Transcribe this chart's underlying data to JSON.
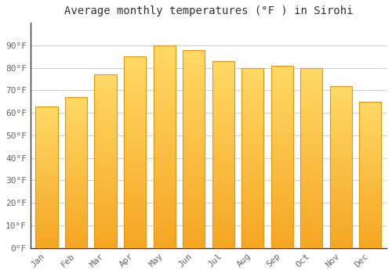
{
  "months": [
    "Jan",
    "Feb",
    "Mar",
    "Apr",
    "May",
    "Jun",
    "Jul",
    "Aug",
    "Sep",
    "Oct",
    "Nov",
    "Dec"
  ],
  "values": [
    63,
    67,
    77,
    85,
    90,
    88,
    83,
    80,
    81,
    80,
    72,
    65
  ],
  "bar_color_top": "#FFD966",
  "bar_color_bottom": "#F5A623",
  "bar_color_edge": "#E8950A",
  "title": "Average monthly temperatures (°F ) in Sirohi",
  "ylim": [
    0,
    100
  ],
  "yticks": [
    0,
    10,
    20,
    30,
    40,
    50,
    60,
    70,
    80,
    90
  ],
  "ytick_labels": [
    "0°F",
    "10°F",
    "20°F",
    "30°F",
    "40°F",
    "50°F",
    "60°F",
    "70°F",
    "80°F",
    "90°F"
  ],
  "background_color": "#FFFFFF",
  "plot_bg_color": "#FFFFFF",
  "grid_color": "#CCCCCC",
  "title_fontsize": 10,
  "tick_fontsize": 8,
  "tick_color": "#666666",
  "font_family": "monospace",
  "bar_width": 0.75
}
